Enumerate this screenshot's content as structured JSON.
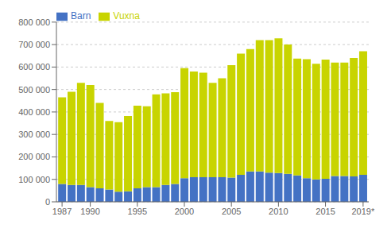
{
  "chart_data": {
    "type": "bar",
    "stacked": true,
    "x": [
      1987,
      1988,
      1989,
      1990,
      1991,
      1992,
      1993,
      1994,
      1995,
      1996,
      1997,
      1998,
      1999,
      2000,
      2001,
      2002,
      2003,
      2004,
      2005,
      2006,
      2007,
      2008,
      2009,
      2010,
      2011,
      2012,
      2013,
      2014,
      2015,
      2016,
      2017,
      2018,
      2019
    ],
    "series": [
      {
        "name": "Barn",
        "color": "#4472c4",
        "values": [
          80000,
          75000,
          75000,
          65000,
          60000,
          55000,
          45000,
          47000,
          60000,
          65000,
          65000,
          75000,
          80000,
          105000,
          110000,
          110000,
          110000,
          110000,
          108000,
          120000,
          135000,
          135000,
          130000,
          128000,
          125000,
          118000,
          105000,
          100000,
          103000,
          115000,
          115000,
          113000,
          120000
        ]
      },
      {
        "name": "Vuxna",
        "color": "#c8d400",
        "values": [
          385000,
          415000,
          455000,
          455000,
          380000,
          305000,
          310000,
          335000,
          368000,
          360000,
          413000,
          408000,
          408000,
          490000,
          470000,
          465000,
          420000,
          440000,
          500000,
          540000,
          545000,
          585000,
          590000,
          600000,
          575000,
          520000,
          530000,
          515000,
          530000,
          505000,
          505000,
          527000,
          550000
        ]
      }
    ],
    "xlim": [
      1986.4,
      2019.6
    ],
    "xticks": [
      1987,
      1990,
      1995,
      2000,
      2005,
      2010,
      2015,
      {
        "value": 2019,
        "label": "2019*"
      }
    ],
    "ylim": [
      0,
      800000
    ],
    "yticks": [
      0,
      {
        "value": 100000,
        "label": "100 000"
      },
      {
        "value": 200000,
        "label": "200 000"
      },
      {
        "value": 300000,
        "label": "300 000"
      },
      {
        "value": 400000,
        "label": "400 000"
      },
      {
        "value": 500000,
        "label": "500 000"
      },
      {
        "value": 600000,
        "label": "600 000"
      },
      {
        "value": 700000,
        "label": "700 000"
      },
      {
        "value": 800000,
        "label": "800 000"
      }
    ],
    "grid": true,
    "legend": "upper left"
  }
}
